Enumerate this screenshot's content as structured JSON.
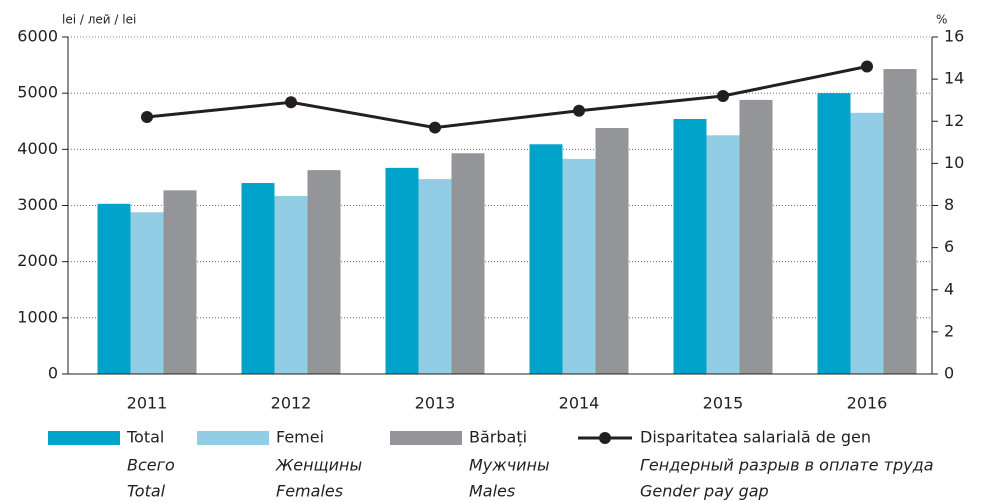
{
  "chart_data": {
    "type": "bar-line",
    "y_label": "lei / лей / lei",
    "y2_label": "%",
    "categories": [
      "2011",
      "2012",
      "2013",
      "2014",
      "2015",
      "2016"
    ],
    "series": [
      {
        "name": "Total",
        "name_ru": "Всего",
        "name_en": "Total",
        "color": "#00a3c9",
        "type": "bar",
        "values": [
          3030,
          3400,
          3670,
          4090,
          4540,
          5000
        ]
      },
      {
        "name": "Femei",
        "name_ru": "Женщины",
        "name_en": "Females",
        "color": "#92cde6",
        "type": "bar",
        "values": [
          2880,
          3170,
          3470,
          3830,
          4250,
          4650
        ]
      },
      {
        "name": "Bărbați",
        "name_ru": "Мужчины",
        "name_en": "Males",
        "color": "#939598",
        "type": "bar",
        "values": [
          3270,
          3630,
          3930,
          4380,
          4880,
          5430
        ]
      },
      {
        "name": "Disparitatea salarială de gen",
        "name_ru": "Гендерный разрыв в оплате труда",
        "name_en": "Gender pay gap",
        "color": "#231f20",
        "type": "line",
        "axis": "y2",
        "values": [
          12.2,
          12.9,
          11.7,
          12.5,
          13.2,
          14.6
        ]
      }
    ],
    "ylim": [
      0,
      6000
    ],
    "yticks": [
      0,
      1000,
      2000,
      3000,
      4000,
      5000,
      6000
    ],
    "y2lim": [
      0,
      16
    ],
    "y2ticks": [
      0,
      2,
      4,
      6,
      8,
      10,
      12,
      14,
      16
    ],
    "grid": true
  }
}
